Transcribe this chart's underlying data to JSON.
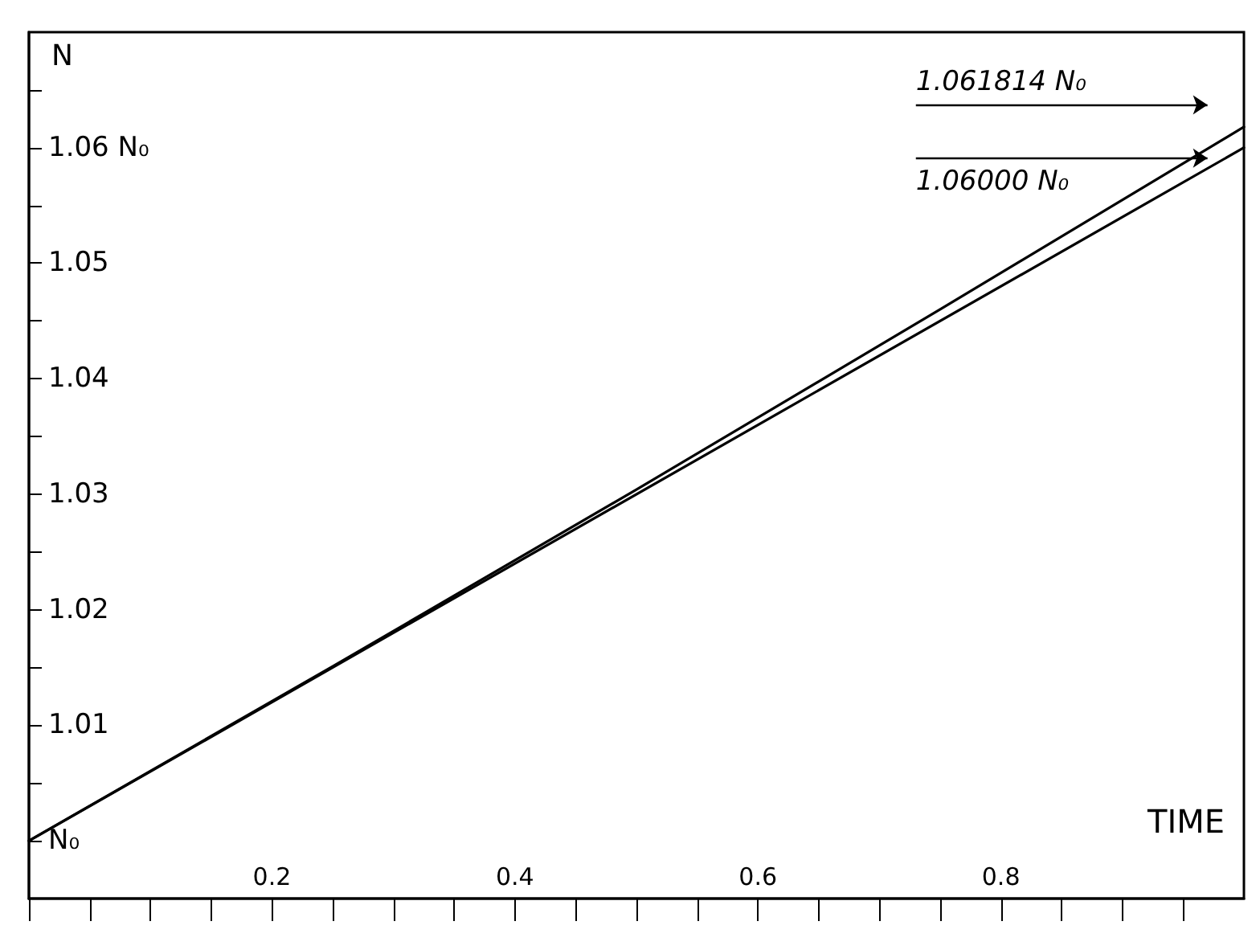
{
  "chart_data": {
    "type": "line",
    "xlabel": "TIME",
    "ylabel": "N",
    "xlim": [
      0,
      1
    ],
    "xticks": [
      {
        "value": 0,
        "label": null
      },
      {
        "value": 0.05,
        "label": null
      },
      {
        "value": 0.1,
        "label": null
      },
      {
        "value": 0.15,
        "label": null
      },
      0.2,
      {
        "value": 0.25,
        "label": null
      },
      {
        "value": 0.3,
        "label": null
      },
      {
        "value": 0.35,
        "label": null
      },
      0.4,
      {
        "value": 0.45,
        "label": null
      },
      {
        "value": 0.5,
        "label": null
      },
      {
        "value": 0.55,
        "label": null
      },
      0.6,
      {
        "value": 0.65,
        "label": null
      },
      {
        "value": 0.7,
        "label": null
      },
      {
        "value": 0.75,
        "label": null
      },
      0.8,
      {
        "value": 0.85,
        "label": null
      },
      {
        "value": 0.9,
        "label": null
      },
      {
        "value": 0.95,
        "label": null
      }
    ],
    "ylim": [
      0.995,
      1.07
    ],
    "yticks": [
      {
        "value": 1,
        "label": "N₀"
      },
      {
        "value": 1.005,
        "label": null
      },
      1.01,
      {
        "value": 1.015,
        "label": null
      },
      1.02,
      {
        "value": 1.025,
        "label": null
      },
      1.03,
      {
        "value": 1.035,
        "label": null
      },
      1.04,
      {
        "value": 1.045,
        "label": null
      },
      1.05,
      {
        "value": 1.055,
        "label": null
      },
      {
        "value": 1.06,
        "label": "1.06 N₀"
      },
      {
        "value": 1.065,
        "label": null
      }
    ],
    "series": [
      {
        "color": "#000000",
        "x": [
          0,
          0.25,
          0.5,
          0.75,
          1
        ],
        "values": [
          1,
          1.0151,
          1.0304,
          1.046,
          1.0618
        ]
      },
      {
        "color": "#000000",
        "x": [
          0,
          1
        ],
        "values": [
          1,
          1.06
        ]
      }
    ],
    "annotations": [
      "1.061814 N₀",
      "1.06000 N₀"
    ],
    "grid": false,
    "marker": "none",
    "line_style": "solid"
  }
}
